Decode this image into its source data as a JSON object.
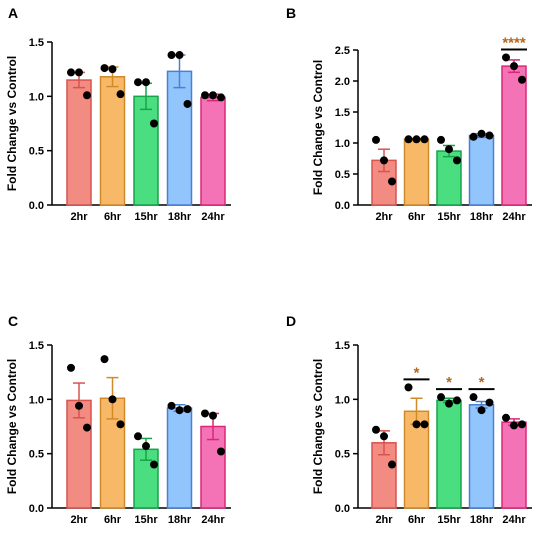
{
  "chart_data": [
    {
      "panel": "A",
      "type": "bar",
      "ylabel": "Fold Change vs Control",
      "ylim": [
        0,
        1.5
      ],
      "yticks": [
        "0.0",
        "0.5",
        "1.0",
        "1.5"
      ],
      "categories": [
        "2hr",
        "6hr",
        "15hr",
        "18hr",
        "24hr"
      ],
      "values": [
        1.15,
        1.18,
        1.0,
        1.23,
        0.99
      ],
      "errors": [
        0.07,
        0.09,
        0.12,
        0.15,
        0.03
      ],
      "points": [
        [
          1.22,
          1.22,
          1.01
        ],
        [
          1.26,
          1.25,
          1.02
        ],
        [
          1.13,
          1.13,
          0.75
        ],
        [
          1.38,
          1.38,
          0.93
        ],
        [
          1.01,
          1.01,
          0.99
        ]
      ],
      "significance": [
        "",
        "",
        "",
        "",
        ""
      ],
      "colors": [
        "#f28b82",
        "#f7b968",
        "#4ade80",
        "#93c5fd",
        "#f472b6"
      ]
    },
    {
      "panel": "B",
      "type": "bar",
      "ylabel": "Fold Change vs Control",
      "ylim": [
        0,
        2.5
      ],
      "yticks": [
        "0.0",
        "0.5",
        "1.0",
        "1.5",
        "2.0",
        "2.5"
      ],
      "categories": [
        "2hr",
        "6hr",
        "15hr",
        "18hr",
        "24hr"
      ],
      "values": [
        0.72,
        1.06,
        0.87,
        1.12,
        2.24
      ],
      "errors": [
        0.18,
        0.01,
        0.09,
        0.03,
        0.1
      ],
      "points": [
        [
          1.05,
          0.72,
          0.38
        ],
        [
          1.06,
          1.06,
          1.06
        ],
        [
          1.05,
          0.9,
          0.72
        ],
        [
          1.1,
          1.15,
          1.12
        ],
        [
          2.38,
          2.24,
          2.02
        ]
      ],
      "significance": [
        "",
        "",
        "",
        "",
        "****"
      ],
      "colors": [
        "#f28b82",
        "#f7b968",
        "#4ade80",
        "#93c5fd",
        "#f472b6"
      ]
    },
    {
      "panel": "C",
      "type": "bar",
      "ylabel": "Fold Change vs Control",
      "ylim": [
        0,
        1.5
      ],
      "yticks": [
        "0.0",
        "0.5",
        "1.0",
        "1.5"
      ],
      "categories": [
        "2hr",
        "6hr",
        "15hr",
        "18hr",
        "24hr"
      ],
      "values": [
        0.99,
        1.01,
        0.54,
        0.92,
        0.75
      ],
      "errors": [
        0.16,
        0.19,
        0.1,
        0.03,
        0.12
      ],
      "points": [
        [
          1.29,
          0.94,
          0.74
        ],
        [
          1.37,
          1.0,
          0.77
        ],
        [
          0.66,
          0.57,
          0.4
        ],
        [
          0.94,
          0.9,
          0.91
        ],
        [
          0.87,
          0.85,
          0.52
        ]
      ],
      "significance": [
        "",
        "",
        "",
        "",
        ""
      ],
      "colors": [
        "#f28b82",
        "#f7b968",
        "#4ade80",
        "#93c5fd",
        "#f472b6"
      ]
    },
    {
      "panel": "D",
      "type": "bar",
      "ylabel": "Fold Change vs Control",
      "ylim": [
        0,
        1.5
      ],
      "yticks": [
        "0.0",
        "0.5",
        "1.0",
        "1.5"
      ],
      "categories": [
        "2hr",
        "6hr",
        "15hr",
        "18hr",
        "24hr"
      ],
      "values": [
        0.6,
        0.89,
        0.99,
        0.95,
        0.79
      ],
      "errors": [
        0.11,
        0.12,
        0.02,
        0.03,
        0.03
      ],
      "points": [
        [
          0.72,
          0.66,
          0.4
        ],
        [
          1.11,
          0.77,
          0.77
        ],
        [
          1.02,
          0.96,
          0.99
        ],
        [
          1.02,
          0.9,
          0.97
        ],
        [
          0.83,
          0.76,
          0.77
        ]
      ],
      "significance": [
        "",
        "*",
        "*",
        "*",
        ""
      ],
      "colors": [
        "#f28b82",
        "#f7b968",
        "#4ade80",
        "#93c5fd",
        "#f472b6"
      ]
    }
  ],
  "style": {
    "axis_color": "#000000",
    "point_color": "#000000",
    "sig_color": "#b5651d",
    "bar_outline": {
      "#f28b82": "#d9534f",
      "#f7b968": "#d08a2a",
      "#4ade80": "#16a34a",
      "#93c5fd": "#4a7fd4",
      "#f472b6": "#db2777"
    }
  }
}
